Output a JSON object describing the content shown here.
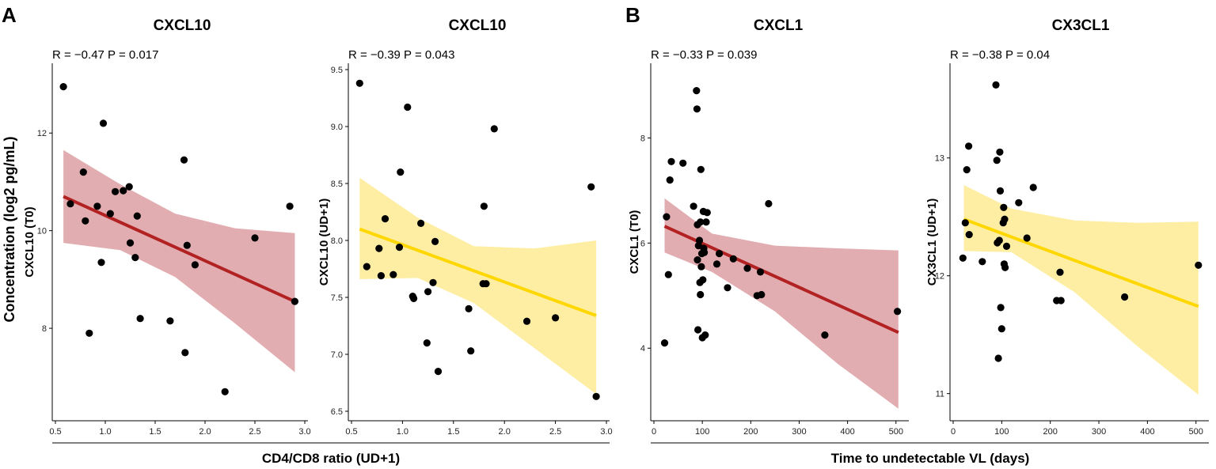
{
  "figure": {
    "panel_labels": [
      "A",
      "B"
    ],
    "concentration_label": "Concentration (log2 pg/mL)",
    "group_x_labels": [
      "CD4/CD8 ratio (UD+1)",
      "Time to undetectable VL (days)"
    ]
  },
  "chart_data": [
    {
      "type": "scatter",
      "title": "CXCL10",
      "stat": "R = −0.47 P = 0.017",
      "ylabel": "CXCL10 (T0)",
      "xlabel": "CD4/CD8 ratio (UD+1)",
      "xlim": [
        0.5,
        3.0
      ],
      "ylim": [
        6.3,
        13.3
      ],
      "xticks": [
        "0.5",
        "1.0",
        "1.5",
        "2.0",
        "2.5",
        "3.0"
      ],
      "xtick_values": [
        0.5,
        1.0,
        1.5,
        2.0,
        2.5,
        3.0
      ],
      "yticks": [
        "8",
        "10",
        "12"
      ],
      "ytick_values": [
        8,
        10,
        12
      ],
      "fit_line": {
        "x": [
          0.58,
          2.9
        ],
        "y": [
          10.7,
          8.55
        ],
        "color": "#b22222"
      },
      "ci_band": {
        "x": [
          0.58,
          1.15,
          1.7,
          2.3,
          2.9
        ],
        "upper": [
          11.65,
          10.95,
          10.35,
          10.05,
          9.95
        ],
        "lower": [
          9.75,
          9.6,
          9.05,
          8.1,
          7.1
        ],
        "color": "#dfa4a8"
      },
      "points": [
        {
          "x": 0.58,
          "y": 12.95
        },
        {
          "x": 0.65,
          "y": 10.55
        },
        {
          "x": 0.78,
          "y": 11.2
        },
        {
          "x": 0.8,
          "y": 10.2
        },
        {
          "x": 0.84,
          "y": 7.9
        },
        {
          "x": 0.92,
          "y": 10.5
        },
        {
          "x": 0.96,
          "y": 9.35
        },
        {
          "x": 0.98,
          "y": 12.2
        },
        {
          "x": 1.05,
          "y": 10.35
        },
        {
          "x": 1.1,
          "y": 10.8
        },
        {
          "x": 1.18,
          "y": 10.82
        },
        {
          "x": 1.24,
          "y": 10.9
        },
        {
          "x": 1.25,
          "y": 9.75
        },
        {
          "x": 1.3,
          "y": 9.45
        },
        {
          "x": 1.32,
          "y": 10.3
        },
        {
          "x": 1.35,
          "y": 8.2
        },
        {
          "x": 1.65,
          "y": 8.15
        },
        {
          "x": 1.79,
          "y": 11.45
        },
        {
          "x": 1.8,
          "y": 7.5
        },
        {
          "x": 1.82,
          "y": 9.7
        },
        {
          "x": 1.9,
          "y": 9.3
        },
        {
          "x": 2.2,
          "y": 6.7
        },
        {
          "x": 2.5,
          "y": 9.85
        },
        {
          "x": 2.85,
          "y": 10.5
        },
        {
          "x": 2.9,
          "y": 8.55
        }
      ]
    },
    {
      "type": "scatter",
      "title": "CXCL10",
      "stat": "R = −0.39 P = 0.043",
      "ylabel": "CXCL10 (UD+1)",
      "xlabel": "CD4/CD8 ratio (UD+1)",
      "xlim": [
        0.5,
        3.0
      ],
      "ylim": [
        6.5,
        9.5
      ],
      "xticks": [
        "0.5",
        "1.0",
        "1.5",
        "2.0",
        "2.5",
        "3.0"
      ],
      "xtick_values": [
        0.5,
        1.0,
        1.5,
        2.0,
        2.5,
        3.0
      ],
      "yticks": [
        "6.5",
        "7.0",
        "7.5",
        "8.0",
        "8.5",
        "9.0",
        "9.5"
      ],
      "ytick_values": [
        6.5,
        7.0,
        7.5,
        8.0,
        8.5,
        9.0,
        9.5
      ],
      "fit_line": {
        "x": [
          0.58,
          2.9
        ],
        "y": [
          8.1,
          7.34
        ],
        "color": "#ffd700"
      },
      "ci_band": {
        "x": [
          0.58,
          1.15,
          1.7,
          2.3,
          2.9
        ],
        "upper": [
          8.55,
          8.2,
          7.95,
          7.93,
          8.0
        ],
        "lower": [
          7.66,
          7.67,
          7.45,
          7.05,
          6.65
        ],
        "color": "#fdec9a"
      },
      "points": [
        {
          "x": 0.58,
          "y": 9.38
        },
        {
          "x": 0.65,
          "y": 7.77
        },
        {
          "x": 0.77,
          "y": 7.93
        },
        {
          "x": 0.79,
          "y": 7.69
        },
        {
          "x": 0.83,
          "y": 8.19
        },
        {
          "x": 0.91,
          "y": 7.7
        },
        {
          "x": 0.97,
          "y": 7.94
        },
        {
          "x": 0.98,
          "y": 8.6
        },
        {
          "x": 1.05,
          "y": 9.17
        },
        {
          "x": 1.1,
          "y": 7.51
        },
        {
          "x": 1.11,
          "y": 7.49
        },
        {
          "x": 1.18,
          "y": 8.15
        },
        {
          "x": 1.24,
          "y": 7.1
        },
        {
          "x": 1.25,
          "y": 7.55
        },
        {
          "x": 1.3,
          "y": 7.63
        },
        {
          "x": 1.32,
          "y": 7.99
        },
        {
          "x": 1.35,
          "y": 6.85
        },
        {
          "x": 1.65,
          "y": 7.4
        },
        {
          "x": 1.67,
          "y": 7.03
        },
        {
          "x": 1.79,
          "y": 7.62
        },
        {
          "x": 1.8,
          "y": 8.3
        },
        {
          "x": 1.82,
          "y": 7.62
        },
        {
          "x": 1.9,
          "y": 8.98
        },
        {
          "x": 2.22,
          "y": 7.29
        },
        {
          "x": 2.5,
          "y": 7.32
        },
        {
          "x": 2.85,
          "y": 8.47
        },
        {
          "x": 2.9,
          "y": 6.63
        }
      ]
    },
    {
      "type": "scatter",
      "title": "CXCL1",
      "stat": "R = −0.33 P = 0.039",
      "ylabel": "CXCL1 (T0)",
      "xlabel": "Time to undetectable VL (days)",
      "xlim": [
        0,
        520
      ],
      "ylim": [
        2.8,
        9.3
      ],
      "xticks": [
        "0",
        "100",
        "200",
        "300",
        "400",
        "500"
      ],
      "xtick_values": [
        0,
        100,
        200,
        300,
        400,
        500
      ],
      "yticks": [
        "4",
        "6",
        "8"
      ],
      "ytick_values": [
        4,
        6,
        8
      ],
      "fit_line": {
        "x": [
          22,
          505
        ],
        "y": [
          6.32,
          4.3
        ],
        "color": "#b22222"
      },
      "ci_band": {
        "x": [
          22,
          120,
          250,
          380,
          505
        ],
        "upper": [
          6.85,
          6.18,
          5.95,
          5.9,
          5.86
        ],
        "lower": [
          5.82,
          5.45,
          4.7,
          3.7,
          2.85
        ],
        "color": "#dfa4a8"
      },
      "points": [
        {
          "x": 22,
          "y": 4.1
        },
        {
          "x": 26,
          "y": 6.5
        },
        {
          "x": 30,
          "y": 5.4
        },
        {
          "x": 33,
          "y": 7.2
        },
        {
          "x": 36,
          "y": 7.55
        },
        {
          "x": 60,
          "y": 7.52
        },
        {
          "x": 82,
          "y": 6.7
        },
        {
          "x": 88,
          "y": 8.9
        },
        {
          "x": 89,
          "y": 8.55
        },
        {
          "x": 90,
          "y": 6.35
        },
        {
          "x": 90,
          "y": 5.68
        },
        {
          "x": 91,
          "y": 4.35
        },
        {
          "x": 92,
          "y": 5.95
        },
        {
          "x": 94,
          "y": 6.05
        },
        {
          "x": 95,
          "y": 5.25
        },
        {
          "x": 96,
          "y": 6.4
        },
        {
          "x": 96,
          "y": 5.02
        },
        {
          "x": 97,
          "y": 7.4
        },
        {
          "x": 98,
          "y": 5.55
        },
        {
          "x": 99,
          "y": 5.8
        },
        {
          "x": 100,
          "y": 4.2
        },
        {
          "x": 101,
          "y": 5.3
        },
        {
          "x": 102,
          "y": 6.6
        },
        {
          "x": 103,
          "y": 5.9
        },
        {
          "x": 104,
          "y": 5.82
        },
        {
          "x": 106,
          "y": 4.25
        },
        {
          "x": 108,
          "y": 6.4
        },
        {
          "x": 110,
          "y": 6.58
        },
        {
          "x": 130,
          "y": 5.6
        },
        {
          "x": 135,
          "y": 5.8
        },
        {
          "x": 152,
          "y": 5.15
        },
        {
          "x": 164,
          "y": 5.7
        },
        {
          "x": 193,
          "y": 5.52
        },
        {
          "x": 213,
          "y": 5.0
        },
        {
          "x": 220,
          "y": 5.45
        },
        {
          "x": 222,
          "y": 5.02
        },
        {
          "x": 237,
          "y": 6.75
        },
        {
          "x": 353,
          "y": 4.25
        },
        {
          "x": 503,
          "y": 4.7
        }
      ]
    },
    {
      "type": "scatter",
      "title": "CX3CL1",
      "stat": "R = −0.38 P = 0.04",
      "ylabel": "CX3CL1 (UD+1)",
      "xlabel": "Time to undetectable VL (days)",
      "xlim": [
        0,
        520
      ],
      "ylim": [
        10.85,
        13.75
      ],
      "xticks": [
        "0",
        "100",
        "200",
        "300",
        "400",
        "500"
      ],
      "xtick_values": [
        0,
        100,
        200,
        300,
        400,
        500
      ],
      "yticks": [
        "11",
        "12",
        "13"
      ],
      "ytick_values": [
        11,
        12,
        13
      ],
      "fit_line": {
        "x": [
          22,
          505
        ],
        "y": [
          12.48,
          11.74
        ],
        "color": "#ffd700"
      },
      "ci_band": {
        "x": [
          22,
          120,
          250,
          380,
          505
        ],
        "upper": [
          12.77,
          12.57,
          12.47,
          12.45,
          12.46
        ],
        "lower": [
          12.21,
          12.2,
          11.86,
          11.4,
          10.99
        ],
        "color": "#fdec9a"
      },
      "points": [
        {
          "x": 20,
          "y": 12.15
        },
        {
          "x": 25,
          "y": 12.45
        },
        {
          "x": 28,
          "y": 12.9
        },
        {
          "x": 32,
          "y": 13.1
        },
        {
          "x": 33,
          "y": 12.35
        },
        {
          "x": 60,
          "y": 12.12
        },
        {
          "x": 88,
          "y": 13.62
        },
        {
          "x": 90,
          "y": 12.98
        },
        {
          "x": 91,
          "y": 12.28
        },
        {
          "x": 93,
          "y": 11.3
        },
        {
          "x": 95,
          "y": 12.3
        },
        {
          "x": 96,
          "y": 13.05
        },
        {
          "x": 97,
          "y": 12.72
        },
        {
          "x": 98,
          "y": 11.73
        },
        {
          "x": 100,
          "y": 11.55
        },
        {
          "x": 103,
          "y": 12.45
        },
        {
          "x": 104,
          "y": 12.58
        },
        {
          "x": 105,
          "y": 12.1
        },
        {
          "x": 106,
          "y": 12.48
        },
        {
          "x": 107,
          "y": 12.07
        },
        {
          "x": 110,
          "y": 12.25
        },
        {
          "x": 135,
          "y": 12.62
        },
        {
          "x": 152,
          "y": 12.32
        },
        {
          "x": 165,
          "y": 12.75
        },
        {
          "x": 213,
          "y": 11.79
        },
        {
          "x": 220,
          "y": 12.03
        },
        {
          "x": 222,
          "y": 11.79
        },
        {
          "x": 353,
          "y": 11.82
        },
        {
          "x": 505,
          "y": 12.09
        }
      ]
    }
  ]
}
